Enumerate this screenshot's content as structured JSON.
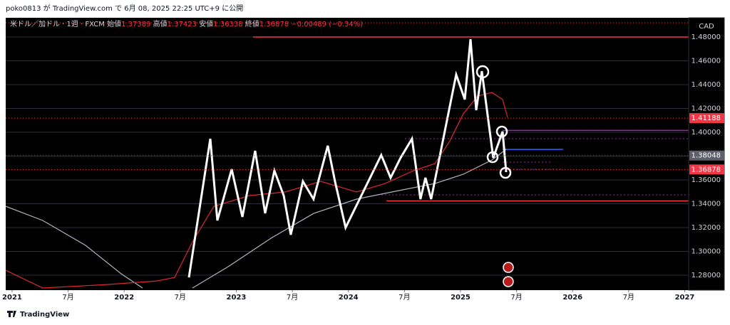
{
  "header": "poko0813 が TradingView.com で 6月 08, 2025 22:25 UTC+9 に公開",
  "footer": "TradingView",
  "chart_data": {
    "type": "line",
    "currency": "CAD",
    "legend": {
      "symbol": "米ドル／加ドル · 1週 · FXCM",
      "open_label": "始値",
      "open": "1.37389",
      "high_label": "高値",
      "high": "1.37423",
      "low_label": "安値",
      "low": "1.36338",
      "close_label": "終値",
      "close": "1.36878",
      "change": "−0.00489 (−0.34%)"
    },
    "xlim": [
      2020.943,
      2027.035
    ],
    "ylim": [
      1.2675,
      1.4961
    ],
    "xticks": [
      {
        "value": 2021,
        "label": "2021"
      },
      {
        "value": 2021.5,
        "label": "7月"
      },
      {
        "value": 2022,
        "label": "2022"
      },
      {
        "value": 2022.5,
        "label": "7月"
      },
      {
        "value": 2023,
        "label": "2023"
      },
      {
        "value": 2023.5,
        "label": "7月"
      },
      {
        "value": 2024,
        "label": "2024"
      },
      {
        "value": 2024.5,
        "label": "7月"
      },
      {
        "value": 2025,
        "label": "2025"
      },
      {
        "value": 2025.5,
        "label": "7月"
      },
      {
        "value": 2026,
        "label": "2026"
      },
      {
        "value": 2026.5,
        "label": "7月"
      },
      {
        "value": 2027,
        "label": "2027"
      }
    ],
    "yticks": [
      {
        "value": 1.28,
        "label": "1.28000"
      },
      {
        "value": 1.3,
        "label": "1.30000"
      },
      {
        "value": 1.32,
        "label": "1.32000"
      },
      {
        "value": 1.34,
        "label": "1.34000"
      },
      {
        "value": 1.36,
        "label": "1.36000"
      },
      {
        "value": 1.38,
        "label": "1.38000"
      },
      {
        "value": 1.4,
        "label": "1.40000"
      },
      {
        "value": 1.42,
        "label": "1.42000"
      },
      {
        "value": 1.44,
        "label": "1.44000"
      },
      {
        "value": 1.46,
        "label": "1.46000"
      },
      {
        "value": 1.48,
        "label": "1.48000"
      }
    ],
    "grid": true,
    "series": [
      {
        "color": "#b2b5be",
        "x": [
          2020.943,
          2021.273,
          2021.655,
          2021.973,
          2022.164,
          null,
          2022.609,
          2022.927,
          2023.308,
          2023.69,
          2024.072,
          2024.453,
          2024.771,
          2025.025,
          2025.28,
          2025.407
        ],
        "values": [
          1.3379,
          1.326,
          1.3051,
          1.2812,
          1.2693,
          null,
          1.2693,
          1.2872,
          1.311,
          1.3319,
          1.3439,
          1.3511,
          1.357,
          1.3648,
          1.3767,
          1.3857
        ]
      },
      {
        "color": "#e0282e",
        "x": [
          2020.943,
          2021.273,
          2021.846,
          2022.291,
          2022.45,
          2022.609,
          2022.8,
          2023.118,
          2023.436,
          2023.754,
          2024.072,
          2024.326,
          2024.58,
          2024.771,
          2024.898,
          2025.025,
          2025.153,
          2025.28,
          2025.375,
          2025.42
        ],
        "values": [
          1.2842,
          1.2693,
          1.2722,
          1.2752,
          1.2782,
          1.3081,
          1.3379,
          1.3469,
          1.3499,
          1.3588,
          1.3499,
          1.357,
          1.3678,
          1.3737,
          1.3916,
          1.4155,
          1.4304,
          1.4334,
          1.4275,
          1.4125
        ]
      },
      {
        "color": "#ffffff",
        "x": [
          2022.577,
          2022.768,
          2022.831,
          2022.959,
          2023.054,
          2023.168,
          2023.257,
          2023.34,
          2023.423,
          2023.486,
          2023.594,
          2023.689,
          2023.816,
          2023.88,
          2023.975,
          2024.293,
          2024.376,
          2024.465,
          2024.567,
          2024.643,
          2024.687,
          2024.738,
          2024.961,
          2025.038,
          2025.089,
          2025.14,
          2025.19,
          2025.292,
          2025.375,
          2025.407
        ],
        "values": [
          1.2782,
          1.3946,
          1.326,
          1.369,
          1.329,
          1.3845,
          1.332,
          1.3678,
          1.3469,
          1.314,
          1.3588,
          1.3439,
          1.3887,
          1.3588,
          1.32,
          1.3809,
          1.3618,
          1.3785,
          1.3946,
          1.3439,
          1.3618,
          1.3439,
          1.4484,
          1.4275,
          1.4782,
          1.4185,
          1.4513,
          1.3785,
          1.4006,
          1.3666
        ]
      }
    ],
    "levels": [
      {
        "value": 1.48,
        "start": 2023.15,
        "end": 2027.035,
        "color": "#f23645",
        "style": "solid"
      },
      {
        "value": 1.3424,
        "start": 2024.34,
        "end": 2027.035,
        "color": "#f23645",
        "style": "solid"
      },
      {
        "value": 1.4016,
        "start": 2025.375,
        "end": 2027.035,
        "color": "#9c27b0",
        "style": "solid"
      },
      {
        "value": 1.3856,
        "start": 2025.375,
        "end": 2025.915,
        "color": "#2962ff",
        "style": "solid"
      },
      {
        "value": 1.3946,
        "start": 2024.504,
        "end": 2027.035,
        "color": "#9c27b0",
        "style": "dotted"
      },
      {
        "value": 1.3475,
        "start": 2024.263,
        "end": 2027.035,
        "color": "#9c27b0",
        "style": "dotted"
      },
      {
        "value": 1.3749,
        "start": 2025.375,
        "end": 2025.82,
        "color": "#9c27b0",
        "style": "dotted"
      },
      {
        "value": 1.369,
        "start": 2025.375,
        "end": 2025.915,
        "color": "#2962ff",
        "style": "dotted"
      }
    ],
    "price_labels": [
      {
        "value": 1.41188,
        "color": "#f23645"
      },
      {
        "value": 1.38048,
        "color": "#5d606b"
      },
      {
        "value": 1.36878,
        "color": "#f23645"
      }
    ]
  }
}
